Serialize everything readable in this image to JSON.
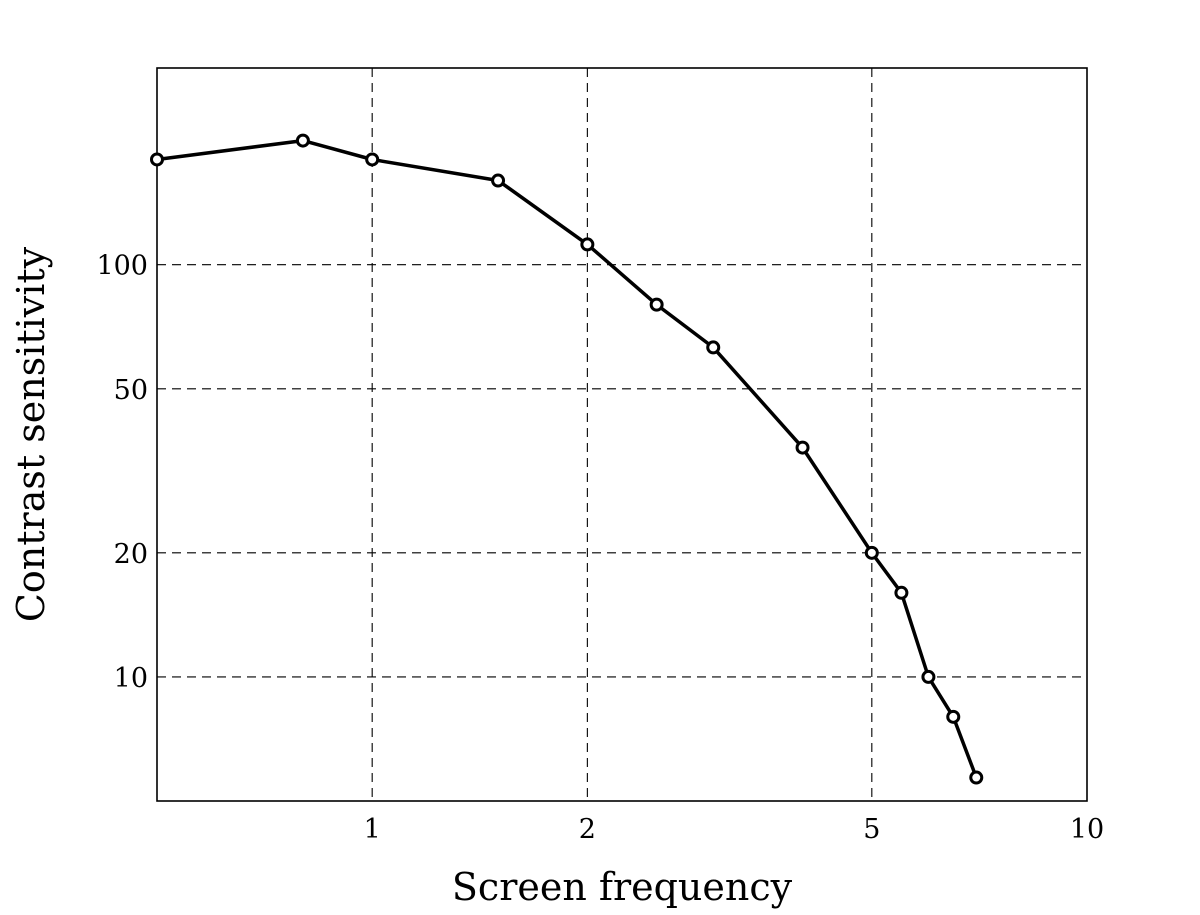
{
  "chart_data": {
    "type": "line",
    "xlabel": "Screen frequency",
    "ylabel": "Contrast sensitivity",
    "xscale": "log",
    "yscale": "log",
    "xlim": [
      0.5,
      10
    ],
    "ylim": [
      5,
      300
    ],
    "grid": true,
    "x_ticks": [
      {
        "value": 1,
        "label": "1"
      },
      {
        "value": 2,
        "label": "2"
      },
      {
        "value": 5,
        "label": "5"
      },
      {
        "value": 10,
        "label": "10"
      }
    ],
    "y_ticks": [
      {
        "value": 10,
        "label": "10"
      },
      {
        "value": 20,
        "label": "20"
      },
      {
        "value": 50,
        "label": "50"
      },
      {
        "value": 100,
        "label": "100"
      }
    ],
    "series": [
      {
        "color": "#000000",
        "marker": "open-circle",
        "x": [
          0.5,
          0.8,
          1.0,
          1.5,
          2.0,
          2.5,
          3.0,
          4.0,
          5.0,
          5.5,
          6.0,
          6.5,
          7.0
        ],
        "y": [
          180,
          200,
          180,
          160,
          112,
          80,
          63,
          36,
          20,
          16,
          10,
          8,
          5.7
        ]
      }
    ]
  }
}
